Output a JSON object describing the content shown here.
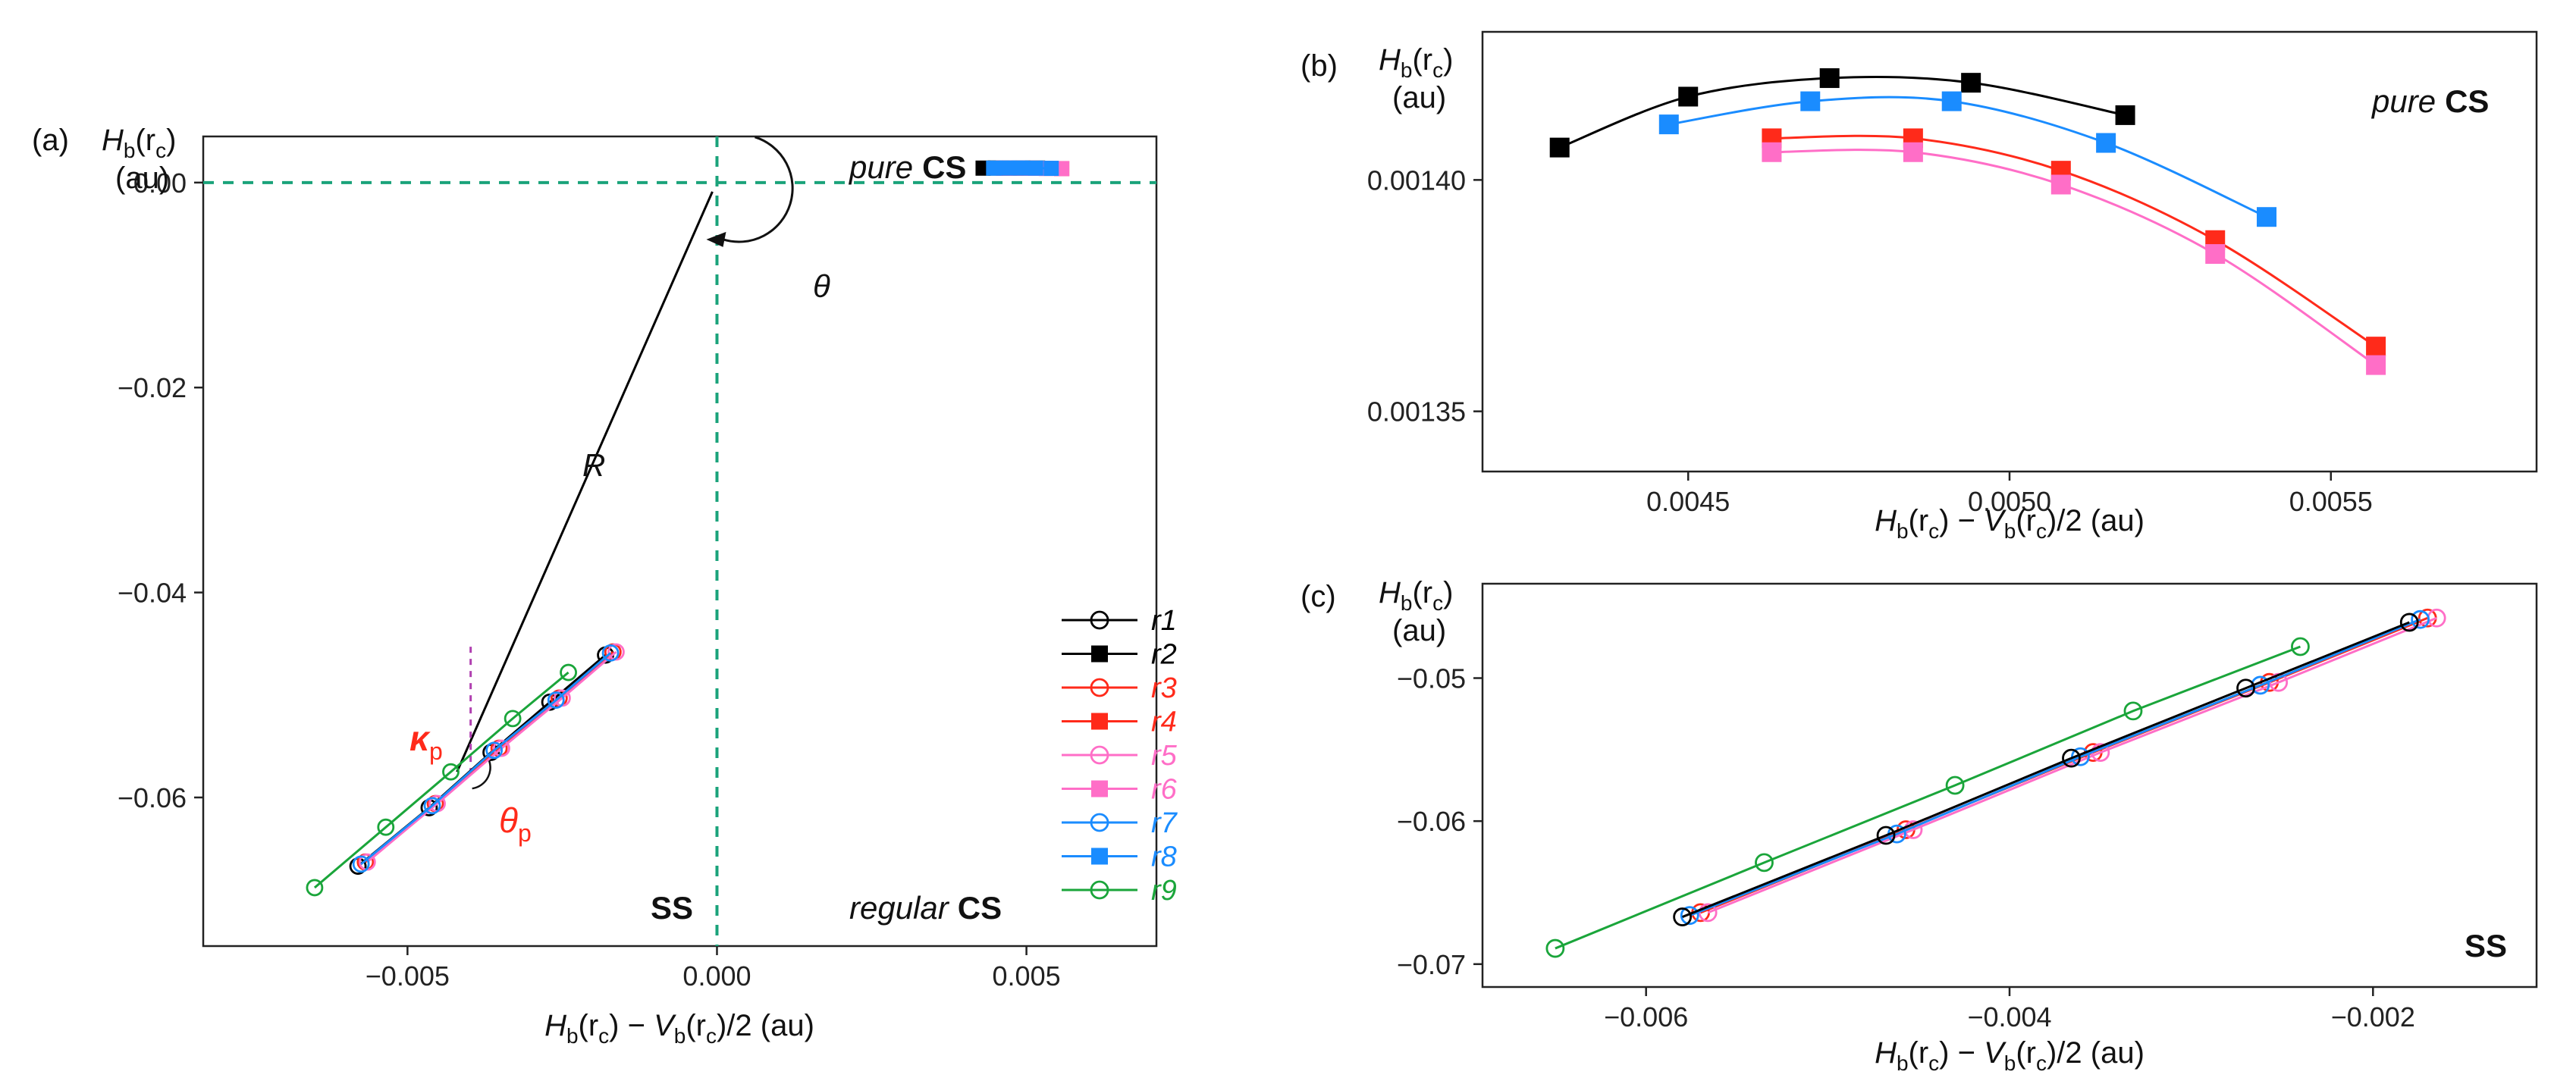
{
  "panels": {
    "a": {
      "label": "(a)",
      "y_label_main": "H",
      "y_label_sub": "b",
      "y_label_arg": "(r",
      "y_label_arg_sub": "c",
      "y_label_close": ")",
      "y_unit": "(au)",
      "x_label_H": "H",
      "x_label_b1": "b",
      "x_label_r1": "(r",
      "x_label_c1": "c",
      "x_label_mid": ") − ",
      "x_label_V": "V",
      "x_label_b2": "b",
      "x_label_r2": "(r",
      "x_label_c2": "c",
      "x_label_end": ")/2 (au)",
      "annotations": {
        "pure": "pure",
        "pure_cs": "CS",
        "regular": "regular",
        "regular_cs": "CS",
        "ss": "SS",
        "theta": "θ",
        "R": "R",
        "kappa": "κ",
        "kappa_sub": "p",
        "theta_p": "θ",
        "theta_p_sub": "p"
      },
      "legend": [
        {
          "name": "r1",
          "color": "#000000",
          "marker": "open"
        },
        {
          "name": "r2",
          "color": "#000000",
          "marker": "square"
        },
        {
          "name": "r3",
          "color": "#ff2a1a",
          "marker": "open"
        },
        {
          "name": "r4",
          "color": "#ff2a1a",
          "marker": "square"
        },
        {
          "name": "r5",
          "color": "#ff6ec7",
          "marker": "open"
        },
        {
          "name": "r6",
          "color": "#ff6ec7",
          "marker": "square"
        },
        {
          "name": "r7",
          "color": "#1a8cff",
          "marker": "open"
        },
        {
          "name": "r8",
          "color": "#1a8cff",
          "marker": "square"
        },
        {
          "name": "r9",
          "color": "#1aa53a",
          "marker": "open"
        }
      ]
    },
    "b": {
      "label": "(b)",
      "y_label_main": "H",
      "y_label_sub": "b",
      "y_label_arg": "(r",
      "y_label_arg_sub": "c",
      "y_label_close": ")",
      "y_unit": "(au)",
      "pure": "pure",
      "pure_cs": "CS"
    },
    "c": {
      "label": "(c)",
      "y_label_main": "H",
      "y_label_sub": "b",
      "y_label_arg": "(r",
      "y_label_arg_sub": "c",
      "y_label_close": ")",
      "y_unit": "(au)",
      "ss": "SS"
    }
  },
  "colors": {
    "guide": "#1aa37a",
    "R_line": "#000000",
    "kappa": "#ff2a1a",
    "kappa_guide": "#b040b0"
  },
  "chart_data": [
    {
      "panel": "a",
      "type": "line",
      "xlim": [
        -0.0083,
        0.0071
      ],
      "ylim": [
        -0.0745,
        0.0045
      ],
      "xticks": [
        -0.005,
        0.0,
        0.005
      ],
      "xtick_labels": [
        "−0.005",
        "0.000",
        "0.005"
      ],
      "yticks": [
        0.0,
        -0.02,
        -0.04,
        -0.06
      ],
      "ytick_labels": [
        "0.00",
        "−0.02",
        "−0.04",
        "−0.06"
      ],
      "series": [
        {
          "name": "r1",
          "color": "#000000",
          "marker": "open",
          "x": [
            -0.0058,
            -0.00465,
            -0.00365,
            -0.0027,
            -0.0018
          ],
          "y": [
            -0.0667,
            -0.061,
            -0.0556,
            -0.0507,
            -0.0461
          ]
        },
        {
          "name": "r3",
          "color": "#ff2a1a",
          "marker": "open",
          "x": [
            -0.00568,
            -0.00455,
            -0.00352,
            -0.00255,
            -0.00168
          ],
          "y": [
            -0.0663,
            -0.0606,
            -0.0552,
            -0.0503,
            -0.0458
          ]
        },
        {
          "name": "r5",
          "color": "#ff6ec7",
          "marker": "open",
          "x": [
            -0.00565,
            -0.00452,
            -0.00348,
            -0.0025,
            -0.00163
          ],
          "y": [
            -0.0663,
            -0.0606,
            -0.0552,
            -0.0503,
            -0.0458
          ]
        },
        {
          "name": "r7",
          "color": "#1a8cff",
          "marker": "open",
          "x": [
            -0.00575,
            -0.0046,
            -0.0036,
            -0.0026,
            -0.00172
          ],
          "y": [
            -0.0665,
            -0.0608,
            -0.0554,
            -0.0505,
            -0.0459
          ]
        },
        {
          "name": "r9",
          "color": "#1aa53a",
          "marker": "open",
          "x": [
            -0.0065,
            -0.00535,
            -0.0043,
            -0.0033,
            -0.0024
          ],
          "y": [
            -0.0688,
            -0.0629,
            -0.0575,
            -0.0523,
            -0.0478
          ]
        },
        {
          "name": "r2",
          "color": "#000000",
          "marker": "square",
          "x": [
            0.0043,
            0.0045,
            0.00472,
            0.00494,
            0.00518
          ],
          "y": [
            0.00141,
            0.00142,
            0.00142,
            0.00142,
            0.00141
          ]
        },
        {
          "name": "r4",
          "color": "#ff2a1a",
          "marker": "square",
          "x": [
            0.00463,
            0.00485,
            0.00508,
            0.00532,
            0.00557
          ],
          "y": [
            0.00141,
            0.00141,
            0.0014,
            0.00139,
            0.00136
          ]
        },
        {
          "name": "r6",
          "color": "#ff6ec7",
          "marker": "square",
          "x": [
            0.00463,
            0.00485,
            0.00508,
            0.00532,
            0.00557
          ],
          "y": [
            0.00141,
            0.00141,
            0.0014,
            0.00138,
            0.00136
          ]
        },
        {
          "name": "r8",
          "color": "#1a8cff",
          "marker": "square",
          "x": [
            0.00447,
            0.00469,
            0.00491,
            0.00515,
            0.0054
          ],
          "y": [
            0.00141,
            0.00142,
            0.00142,
            0.00141,
            0.00139
          ]
        }
      ],
      "guide_lines": {
        "x": 0.0,
        "y": 0.0
      },
      "R_line": {
        "from": [
          -0.0042,
          -0.0575
        ],
        "to": [
          0.0,
          0.0
        ]
      }
    },
    {
      "panel": "b",
      "type": "line",
      "xlim": [
        0.00418,
        0.00582
      ],
      "ylim": [
        0.001337,
        0.001432
      ],
      "xticks": [
        0.0045,
        0.005,
        0.0055
      ],
      "xtick_labels": [
        "0.0045",
        "0.0050",
        "0.0055"
      ],
      "yticks": [
        0.0014,
        0.00135
      ],
      "ytick_labels": [
        "0.00140",
        "0.00135"
      ],
      "series": [
        {
          "name": "r2",
          "color": "#000000",
          "marker": "square",
          "x": [
            0.0043,
            0.0045,
            0.00472,
            0.00494,
            0.00518
          ],
          "y": [
            0.001407,
            0.001418,
            0.001422,
            0.001421,
            0.001414
          ]
        },
        {
          "name": "r8",
          "color": "#1a8cff",
          "marker": "square",
          "x": [
            0.00447,
            0.00469,
            0.00491,
            0.00515,
            0.0054
          ],
          "y": [
            0.001412,
            0.001417,
            0.001417,
            0.001408,
            0.001392
          ]
        },
        {
          "name": "r4",
          "color": "#ff2a1a",
          "marker": "square",
          "x": [
            0.00463,
            0.00485,
            0.00508,
            0.00532,
            0.00557
          ],
          "y": [
            0.001409,
            0.001409,
            0.001402,
            0.001387,
            0.001364
          ]
        },
        {
          "name": "r6",
          "color": "#ff6ec7",
          "marker": "square",
          "x": [
            0.00463,
            0.00485,
            0.00508,
            0.00532,
            0.00557
          ],
          "y": [
            0.001406,
            0.001406,
            0.001399,
            0.001384,
            0.00136
          ]
        }
      ]
    },
    {
      "panel": "c",
      "type": "line",
      "xlim": [
        -0.0069,
        -0.0011
      ],
      "ylim": [
        -0.0716,
        -0.0434
      ],
      "xticks": [
        -0.006,
        -0.004,
        -0.002
      ],
      "xtick_labels": [
        "−0.006",
        "−0.004",
        "−0.002"
      ],
      "yticks": [
        -0.05,
        -0.06,
        -0.07
      ],
      "ytick_labels": [
        "−0.05",
        "−0.06",
        "−0.07"
      ],
      "series": [
        {
          "name": "r3",
          "color": "#ff2a1a",
          "marker": "open",
          "x": [
            -0.0057,
            -0.00457,
            -0.00354,
            -0.00257,
            -0.0017
          ],
          "y": [
            -0.0664,
            -0.0606,
            -0.0552,
            -0.0503,
            -0.0458
          ]
        },
        {
          "name": "r5",
          "color": "#ff6ec7",
          "marker": "open",
          "x": [
            -0.00566,
            -0.00453,
            -0.0035,
            -0.00252,
            -0.00165
          ],
          "y": [
            -0.0664,
            -0.0606,
            -0.0552,
            -0.0503,
            -0.0458
          ]
        },
        {
          "name": "r7",
          "color": "#1a8cff",
          "marker": "open",
          "x": [
            -0.00576,
            -0.00462,
            -0.00361,
            -0.00262,
            -0.00174
          ],
          "y": [
            -0.0666,
            -0.0609,
            -0.0555,
            -0.0505,
            -0.0459
          ]
        },
        {
          "name": "r1",
          "color": "#000000",
          "marker": "open",
          "x": [
            -0.0058,
            -0.00468,
            -0.00366,
            -0.0027,
            -0.0018
          ],
          "y": [
            -0.0667,
            -0.061,
            -0.0556,
            -0.0507,
            -0.0461
          ]
        },
        {
          "name": "r9",
          "color": "#1aa53a",
          "marker": "open",
          "x": [
            -0.0065,
            -0.00535,
            -0.0043,
            -0.00332,
            -0.0024
          ],
          "y": [
            -0.0689,
            -0.0629,
            -0.0575,
            -0.0523,
            -0.0478
          ]
        }
      ]
    }
  ]
}
